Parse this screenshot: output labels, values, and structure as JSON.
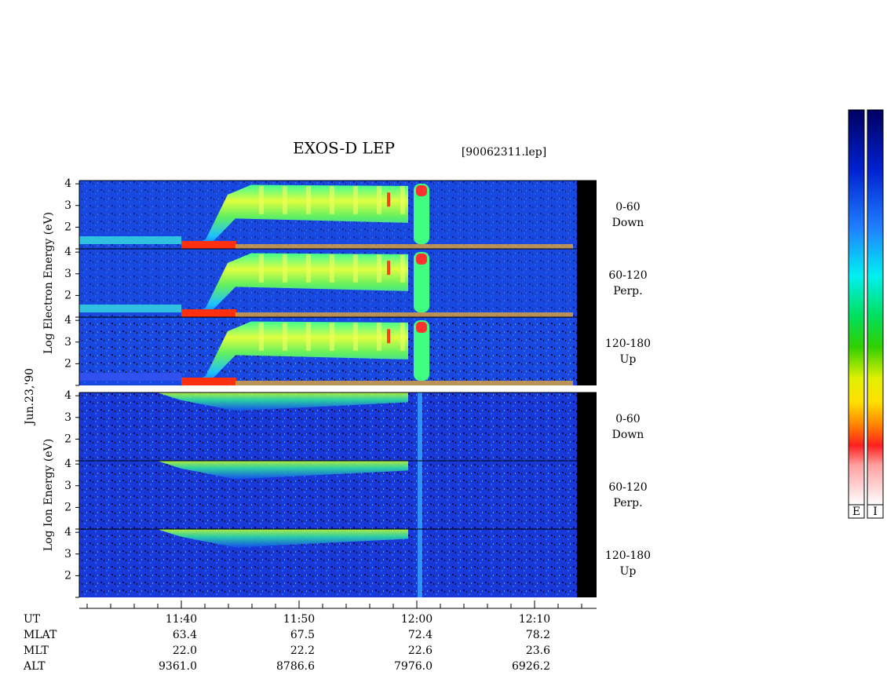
{
  "title": "EXOS-D LEP",
  "file": "[90062311.lep]",
  "date_label": "Jun.23,'90",
  "groups": [
    {
      "ylabel": "Log  Electron  Energy (eV)",
      "panels": [
        {
          "angle": "0-60",
          "direction": "Down"
        },
        {
          "angle": "60-120",
          "direction": "Perp."
        },
        {
          "angle": "120-180",
          "direction": "Up"
        }
      ]
    },
    {
      "ylabel": "Log  Ion  Energy (eV)",
      "panels": [
        {
          "angle": "0-60",
          "direction": "Down"
        },
        {
          "angle": "60-120",
          "direction": "Perp."
        },
        {
          "angle": "120-180",
          "direction": "Up"
        }
      ]
    }
  ],
  "ylim": [
    1,
    4.15
  ],
  "yticks": [
    2,
    3,
    4
  ],
  "time_axis": {
    "name": "UT",
    "ticks": [
      "11:40",
      "11:50",
      "12:00",
      "12:10"
    ]
  },
  "orbit_rows": [
    {
      "name": "MLAT",
      "values": [
        "63.4",
        "67.5",
        "72.4",
        "78.2"
      ]
    },
    {
      "name": "MLT",
      "values": [
        "22.0",
        "22.2",
        "22.6",
        "23.6"
      ]
    },
    {
      "name": "ALT",
      "values": [
        "9361.0",
        "8786.6",
        "7976.0",
        "6926.2"
      ]
    }
  ],
  "colorbars": [
    "E",
    "I"
  ]
}
